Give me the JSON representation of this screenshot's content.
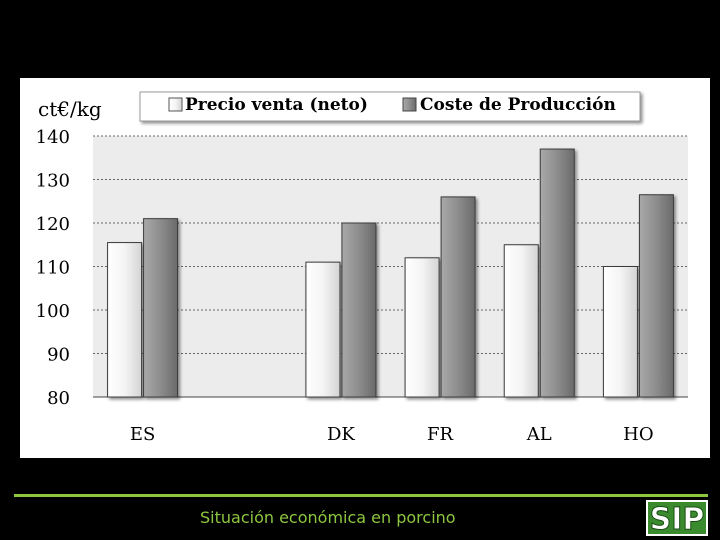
{
  "chart_data": {
    "type": "bar",
    "ylabel": "ct€/kg",
    "ylim": [
      80,
      140
    ],
    "yticks": [
      80,
      90,
      100,
      110,
      120,
      130,
      140
    ],
    "categories": [
      "ES",
      "",
      "DK",
      "FR",
      "AL",
      "HO"
    ],
    "series": [
      {
        "name": "Precio venta (neto)",
        "color": "#f2f2f2",
        "values": [
          115.5,
          null,
          111,
          112,
          115,
          110
        ]
      },
      {
        "name": "Coste de Producción",
        "color": "#8c8c8c",
        "values": [
          121,
          null,
          120,
          126,
          137,
          126.5
        ]
      }
    ],
    "grid": true,
    "legend_position": "top"
  },
  "footer": {
    "caption": "Situación económica en porcino",
    "logo_text": "SIP",
    "accent_color": "#8dc63f"
  }
}
